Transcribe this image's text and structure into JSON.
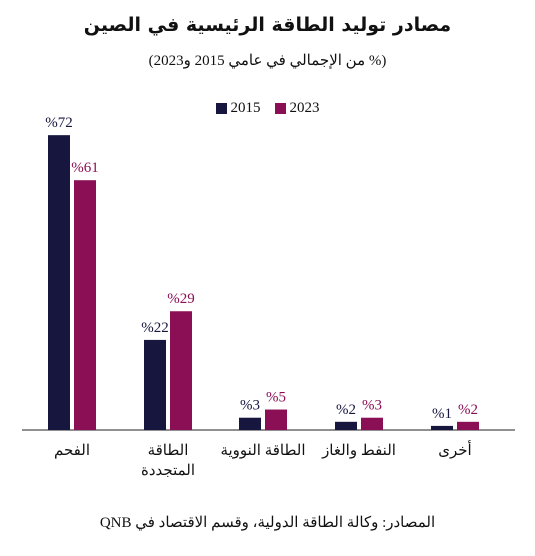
{
  "chart_data": {
    "type": "bar",
    "title": "مصادر توليد الطاقة الرئيسية في الصين",
    "subtitle": "(% من الإجمالي في عامي 2015 و2023)",
    "categories": [
      "الفحم",
      "الطاقة المتجددة",
      "الطاقة النووية",
      "النفط والغاز",
      "أخرى"
    ],
    "category_lines": [
      [
        "الفحم"
      ],
      [
        "الطاقة",
        "المتجددة"
      ],
      [
        "الطاقة النووية"
      ],
      [
        "النفط والغاز"
      ],
      [
        "أخرى"
      ]
    ],
    "series": [
      {
        "name": "2015",
        "color": "#16163f",
        "values": [
          72,
          22,
          3,
          2,
          1
        ],
        "labels": [
          "%72",
          "%22",
          "%3",
          "%2",
          "%1"
        ]
      },
      {
        "name": "2023",
        "color": "#8b0f55",
        "values": [
          61,
          29,
          5,
          3,
          2
        ],
        "labels": [
          "%61",
          "%29",
          "%5",
          "%3",
          "%2"
        ]
      }
    ],
    "ylim": [
      0,
      75
    ],
    "grid": false,
    "legend_position": "top-center",
    "source": "المصادر: وكالة الطاقة الدولية، وقسم الاقتصاد في QNB"
  }
}
